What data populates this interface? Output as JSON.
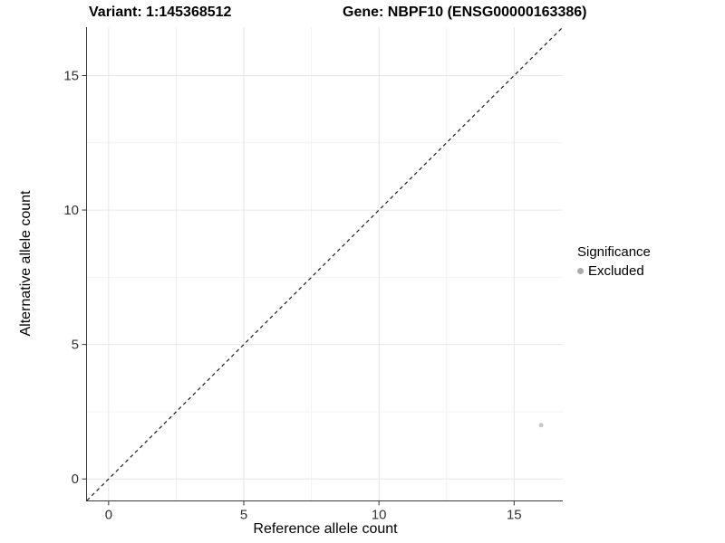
{
  "chart_data": {
    "type": "scatter",
    "title_left": "Variant: 1:145368512",
    "title_right": "Gene: NBPF10 (ENSG00000163386)",
    "xlabel": "Reference allele count",
    "ylabel": "Alternative allele count",
    "xlim": [
      -0.8,
      16.8
    ],
    "ylim": [
      -0.8,
      16.8
    ],
    "xticks": [
      0,
      5,
      10,
      15
    ],
    "yticks": [
      0,
      5,
      10,
      15
    ],
    "xminor_ticks": [
      2.5,
      7.5,
      12.5
    ],
    "yminor_ticks": [
      2.5,
      7.5,
      12.5
    ],
    "grid": true,
    "series": [
      {
        "name": "Excluded",
        "points": [
          {
            "x": 16,
            "y": 2
          }
        ],
        "color": "#c8c8c8",
        "marker_radius": 2.5
      }
    ],
    "reference_line": {
      "type": "abline",
      "slope": 1,
      "intercept": 0,
      "line_style": "dashed",
      "color": "#1a1a1a"
    },
    "legend": {
      "title": "Significance",
      "position": "right",
      "entries": [
        {
          "label": "Excluded",
          "color": "#ababab"
        }
      ]
    },
    "colors": {
      "background": "#ffffff",
      "grid_major": "#e6e6e6",
      "grid_minor": "#f2f2f2",
      "axis_line": "#3a3a3a",
      "tick_mark": "#333333",
      "tick_label": "#333333"
    }
  }
}
